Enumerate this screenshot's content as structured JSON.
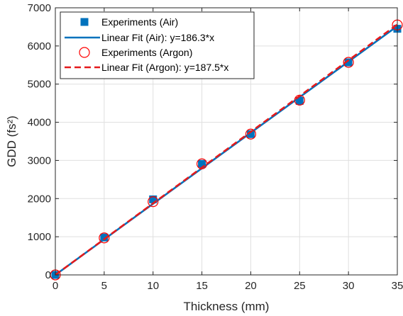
{
  "chart_data": {
    "type": "scatter",
    "xlabel": "Thickness (mm)",
    "ylabel": "GDD (fs²)",
    "xlim": [
      0,
      35
    ],
    "ylim": [
      0,
      7000
    ],
    "xticks": [
      0,
      5,
      10,
      15,
      20,
      25,
      30,
      35
    ],
    "yticks": [
      0,
      1000,
      2000,
      3000,
      4000,
      5000,
      6000,
      7000
    ],
    "xtick_labels": [
      "0",
      "5",
      "10",
      "15",
      "20",
      "25",
      "30",
      "35"
    ],
    "ytick_labels": [
      "0",
      "1000",
      "2000",
      "3000",
      "4000",
      "5000",
      "6000",
      "7000"
    ],
    "grid": true,
    "legend_position": "top-left",
    "series": [
      {
        "name": "Experiments (Air)",
        "kind": "markers",
        "marker": "square",
        "color": "#0072BD",
        "x": [
          0,
          5,
          10,
          15,
          20,
          25,
          30,
          35
        ],
        "y": [
          0,
          980,
          1980,
          2910,
          3690,
          4560,
          5570,
          6450
        ]
      },
      {
        "name": "Linear Fit (Air): y=186.3*x",
        "kind": "line",
        "style": "solid",
        "color": "#0072BD",
        "slope": 186.3,
        "x": [
          0,
          35
        ],
        "y": [
          0,
          6520.5
        ]
      },
      {
        "name": "Experiments (Argon)",
        "kind": "markers",
        "marker": "circle-open",
        "color": "#FF0000",
        "x": [
          0,
          5,
          10,
          15,
          20,
          25,
          30,
          35
        ],
        "y": [
          0,
          970,
          1920,
          2910,
          3690,
          4580,
          5570,
          6550
        ]
      },
      {
        "name": "Linear Fit (Argon): y=187.5*x",
        "kind": "line",
        "style": "dashed",
        "color": "#E41A1C",
        "slope": 187.5,
        "x": [
          0,
          35
        ],
        "y": [
          0,
          6562.5
        ]
      }
    ]
  }
}
